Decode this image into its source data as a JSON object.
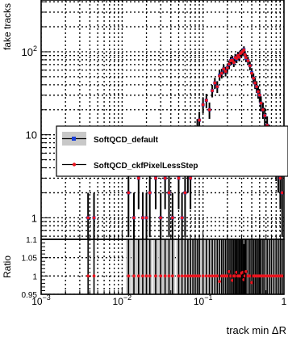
{
  "chart_data": [
    {
      "type": "scatter",
      "ylabel": "fake tracks",
      "xscale": "log",
      "yscale": "log",
      "xlim": [
        0.001,
        1
      ],
      "ylim": [
        0.55,
        420
      ],
      "grid": true,
      "y_tick_labels": [
        {
          "value": 1,
          "label": "1"
        },
        {
          "value": 10,
          "label": "10"
        },
        {
          "value": 100,
          "label": "10",
          "sup": "2"
        }
      ],
      "legend": {
        "placement": "right",
        "entries": [
          {
            "label": "SoftQCD_default",
            "color": "#1a3fd6",
            "band_color": "#c8c8c8",
            "marker": "square"
          },
          {
            "label": "SoftQCD_ckfPixelLessStep",
            "color": "#e8141e",
            "marker": "circle"
          }
        ]
      },
      "series": [
        {
          "name": "SoftQCD_default",
          "color": "#1a3fd6",
          "x": [
            0.0038,
            0.0045,
            0.012,
            0.014,
            0.016,
            0.018,
            0.02,
            0.022,
            0.026,
            0.03,
            0.034,
            0.038,
            0.042,
            0.05,
            0.055,
            0.06,
            0.065,
            0.07,
            0.075,
            0.08,
            0.085,
            0.09,
            0.1,
            0.11,
            0.12,
            0.13,
            0.14,
            0.15,
            0.16,
            0.17,
            0.18,
            0.19,
            0.2,
            0.21,
            0.22,
            0.23,
            0.24,
            0.25,
            0.26,
            0.27,
            0.28,
            0.29,
            0.3,
            0.31,
            0.32,
            0.33,
            0.34,
            0.36,
            0.38,
            0.4,
            0.42,
            0.44,
            0.46,
            0.48,
            0.5,
            0.52,
            0.55,
            0.58,
            0.62,
            0.66,
            0.7,
            0.75,
            0.8,
            0.85,
            0.9,
            0.95
          ],
          "y": [
            1,
            1,
            2,
            1,
            3,
            1,
            1,
            2,
            3,
            1,
            3,
            2,
            1,
            3,
            1,
            2,
            4,
            3,
            6,
            7,
            12,
            15,
            23,
            26,
            20,
            34,
            42,
            38,
            52,
            55,
            62,
            58,
            64,
            70,
            78,
            80,
            74,
            85,
            82,
            90,
            86,
            95,
            97,
            100,
            106,
            92,
            84,
            78,
            68,
            56,
            48,
            42,
            38,
            33,
            30,
            24,
            20,
            17,
            13,
            10,
            8,
            6,
            5,
            4,
            3,
            2
          ]
        },
        {
          "name": "SoftQCD_ckfPixelLessStep",
          "color": "#e8141e",
          "x": [
            0.0038,
            0.0045,
            0.012,
            0.014,
            0.016,
            0.018,
            0.02,
            0.022,
            0.026,
            0.03,
            0.034,
            0.038,
            0.042,
            0.05,
            0.055,
            0.06,
            0.065,
            0.07,
            0.075,
            0.08,
            0.085,
            0.09,
            0.1,
            0.11,
            0.12,
            0.13,
            0.14,
            0.15,
            0.16,
            0.17,
            0.18,
            0.19,
            0.2,
            0.21,
            0.22,
            0.23,
            0.24,
            0.25,
            0.26,
            0.27,
            0.28,
            0.29,
            0.3,
            0.31,
            0.32,
            0.33,
            0.34,
            0.36,
            0.38,
            0.4,
            0.42,
            0.44,
            0.46,
            0.48,
            0.5,
            0.52,
            0.55,
            0.58,
            0.62,
            0.66,
            0.7,
            0.75,
            0.8,
            0.85,
            0.9,
            0.95
          ],
          "y": [
            1,
            1,
            2,
            1,
            3,
            1,
            1,
            2,
            3,
            1,
            3,
            2,
            1,
            3,
            1,
            2,
            4,
            3,
            6,
            7,
            12,
            15,
            23,
            26,
            20,
            34,
            42,
            38,
            51,
            55,
            62,
            58,
            64,
            71,
            78,
            79,
            74,
            85,
            83,
            90,
            86,
            95,
            98,
            101,
            105,
            92,
            85,
            78,
            68,
            55,
            48,
            42,
            38,
            33,
            30,
            24,
            20,
            17,
            13,
            10,
            8,
            6,
            5,
            4,
            3,
            2
          ]
        }
      ]
    },
    {
      "type": "scatter",
      "ylabel": "Ratio",
      "xlabel": "track min ΔR",
      "xscale": "log",
      "xlim": [
        0.001,
        1
      ],
      "ylim": [
        0.95,
        1.1
      ],
      "grid": true,
      "y_tick_labels": [
        {
          "value": 0.95,
          "label": "0.95"
        },
        {
          "value": 1,
          "label": "1"
        },
        {
          "value": 1.05,
          "label": "1.05"
        },
        {
          "value": 1.1,
          "label": "1.1"
        }
      ],
      "x_tick_labels": [
        {
          "value": 0.001,
          "label": "10",
          "sup": "−3"
        },
        {
          "value": 0.01,
          "label": "10",
          "sup": "−2"
        },
        {
          "value": 0.1,
          "label": "10",
          "sup": "−1"
        },
        {
          "value": 1,
          "label": "1"
        }
      ],
      "series": [
        {
          "name": "SoftQCD_ckfPixelLessStep",
          "color": "#e8141e",
          "x": [
            0.0038,
            0.0045,
            0.012,
            0.014,
            0.016,
            0.018,
            0.02,
            0.022,
            0.026,
            0.03,
            0.034,
            0.038,
            0.042,
            0.05,
            0.055,
            0.06,
            0.065,
            0.07,
            0.075,
            0.08,
            0.085,
            0.09,
            0.1,
            0.11,
            0.12,
            0.13,
            0.14,
            0.15,
            0.16,
            0.17,
            0.18,
            0.19,
            0.2,
            0.21,
            0.22,
            0.23,
            0.24,
            0.25,
            0.26,
            0.27,
            0.28,
            0.29,
            0.3,
            0.31,
            0.32,
            0.33,
            0.34,
            0.36,
            0.38,
            0.4,
            0.42,
            0.44,
            0.46,
            0.48,
            0.5,
            0.52,
            0.55,
            0.58,
            0.62,
            0.66,
            0.7,
            0.75,
            0.8,
            0.85,
            0.9,
            0.95
          ],
          "y": [
            1,
            1,
            1,
            1,
            1,
            1,
            1,
            1,
            1,
            1,
            1,
            1,
            1,
            1,
            1,
            1,
            1,
            1,
            1,
            1,
            1,
            1,
            1,
            1,
            1,
            1,
            1,
            1,
            0.985,
            1,
            1,
            1,
            1,
            1.012,
            1,
            0.988,
            1,
            1,
            1.01,
            1,
            1,
            1,
            1.008,
            1.01,
            0.99,
            1,
            1.012,
            1,
            1,
            0.982,
            1,
            1,
            1,
            1,
            1,
            1,
            1,
            1,
            1,
            1,
            1,
            1,
            1,
            1,
            1,
            1
          ]
        }
      ]
    }
  ]
}
